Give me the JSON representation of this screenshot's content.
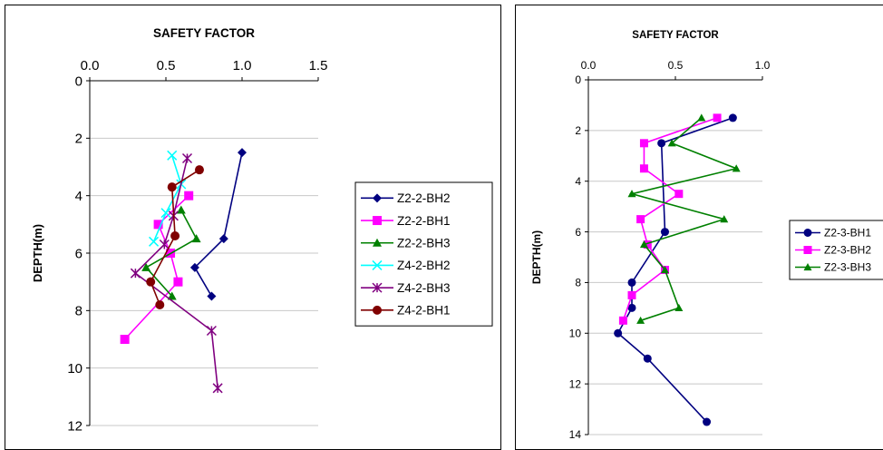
{
  "chart_data": [
    {
      "type": "line",
      "title": "SAFETY FACTOR",
      "xlabel": "",
      "ylabel": "DEPTH(m)",
      "xlim": [
        0,
        1.5
      ],
      "ylim": [
        0,
        12
      ],
      "y_inverted": true,
      "x_axis_position": "top",
      "x_ticks": [
        "0.0",
        "0.5",
        "1.0",
        "1.5"
      ],
      "y_ticks": [
        "0",
        "2",
        "4",
        "6",
        "8",
        "10",
        "12"
      ],
      "grid": "horizontal",
      "legend_position": "right",
      "series": [
        {
          "name": "Z2-2-BH2",
          "color": "#000080",
          "marker": "diamond",
          "points": [
            [
              1.0,
              2.5
            ],
            [
              0.88,
              5.5
            ],
            [
              0.69,
              6.5
            ],
            [
              0.8,
              7.5
            ]
          ]
        },
        {
          "name": "Z2-2-BH1",
          "color": "#ff00ff",
          "marker": "square",
          "points": [
            [
              0.65,
              4.0
            ],
            [
              0.45,
              5.0
            ],
            [
              0.53,
              6.0
            ],
            [
              0.58,
              7.0
            ],
            [
              0.23,
              9.0
            ]
          ]
        },
        {
          "name": "Z2-2-BH3",
          "color": "#008000",
          "marker": "triangle",
          "points": [
            [
              0.6,
              4.5
            ],
            [
              0.7,
              5.5
            ],
            [
              0.37,
              6.5
            ],
            [
              0.54,
              7.5
            ]
          ]
        },
        {
          "name": "Z4-2-BH2",
          "color": "#00ffff",
          "marker": "x",
          "points": [
            [
              0.54,
              2.6
            ],
            [
              0.6,
              3.6
            ],
            [
              0.5,
              4.6
            ],
            [
              0.42,
              5.6
            ]
          ]
        },
        {
          "name": "Z4-2-BH3",
          "color": "#800080",
          "marker": "star",
          "points": [
            [
              0.64,
              2.7
            ],
            [
              0.55,
              4.7
            ],
            [
              0.49,
              5.7
            ],
            [
              0.3,
              6.7
            ],
            [
              0.8,
              8.7
            ],
            [
              0.84,
              10.7
            ]
          ]
        },
        {
          "name": "Z4-2-BH1",
          "color": "#800000",
          "marker": "circle",
          "points": [
            [
              0.72,
              3.1
            ],
            [
              0.54,
              3.7
            ],
            [
              0.56,
              5.4
            ],
            [
              0.4,
              7.0
            ],
            [
              0.46,
              7.8
            ]
          ]
        }
      ]
    },
    {
      "type": "line",
      "title": "SAFETY FACTOR",
      "xlabel": "",
      "ylabel": "DEPTH(m)",
      "xlim": [
        0,
        1.0
      ],
      "ylim": [
        0,
        14
      ],
      "y_inverted": true,
      "x_axis_position": "top",
      "x_ticks": [
        "0.0",
        "0.5",
        "1.0"
      ],
      "y_ticks": [
        "0",
        "2",
        "4",
        "6",
        "8",
        "10",
        "12",
        "14"
      ],
      "grid": "horizontal",
      "legend_position": "right",
      "series": [
        {
          "name": "Z2-3-BH1",
          "color": "#000080",
          "marker": "circle",
          "points": [
            [
              0.83,
              1.5
            ],
            [
              0.42,
              2.5
            ],
            [
              0.44,
              6.0
            ],
            [
              0.25,
              8.0
            ],
            [
              0.25,
              9.0
            ],
            [
              0.17,
              10.0
            ],
            [
              0.34,
              11.0
            ],
            [
              0.68,
              13.5
            ]
          ]
        },
        {
          "name": "Z2-3-BH2",
          "color": "#ff00ff",
          "marker": "square",
          "points": [
            [
              0.74,
              1.5
            ],
            [
              0.32,
              2.5
            ],
            [
              0.32,
              3.5
            ],
            [
              0.52,
              4.5
            ],
            [
              0.3,
              5.5
            ],
            [
              0.34,
              6.5
            ],
            [
              0.44,
              7.5
            ],
            [
              0.25,
              8.5
            ],
            [
              0.2,
              9.5
            ]
          ]
        },
        {
          "name": "Z2-3-BH3",
          "color": "#008000",
          "marker": "triangle",
          "points": [
            [
              0.65,
              1.5
            ],
            [
              0.48,
              2.5
            ],
            [
              0.85,
              3.5
            ],
            [
              0.25,
              4.5
            ],
            [
              0.78,
              5.5
            ],
            [
              0.32,
              6.5
            ],
            [
              0.44,
              7.5
            ],
            [
              0.52,
              9.0
            ],
            [
              0.3,
              9.5
            ]
          ]
        }
      ]
    }
  ]
}
